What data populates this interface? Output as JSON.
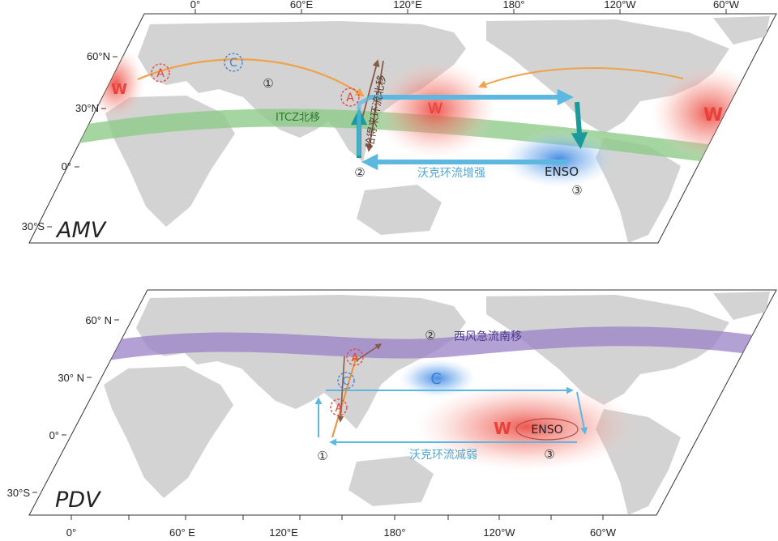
{
  "colors": {
    "warm": "#e8403a",
    "cold": "#3a7fd6",
    "jet": "#f0a24a",
    "walker": "#5cb8e0",
    "walker_dark": "#1a9a9a",
    "itcz": "#8ecb8a",
    "westerly": "#9a82c8",
    "hadley": "#8a5a48",
    "land": "#d3d3d3"
  },
  "top_panel": {
    "label": "AMV",
    "lon_ticks": [
      "0°",
      "60°E",
      "120°E",
      "180°",
      "120°W",
      "60°W"
    ],
    "lat_ticks": [
      "60°N",
      "30°N",
      "0°",
      "30°S"
    ],
    "warm_labels": [
      "W",
      "W",
      "W"
    ],
    "anticyclone_labels": [
      "A",
      "A"
    ],
    "cyclone_label": "C",
    "itcz_text": "ITCZ北移",
    "hadley_text": "哈得来环流北移",
    "walker_text": "沃克环流增强",
    "enso_text": "ENSO",
    "circle_nums": [
      "①",
      "②",
      "③"
    ]
  },
  "bottom_panel": {
    "label": "PDV",
    "lon_ticks": [
      "0°",
      "60° E",
      "120°E",
      "180°",
      "120°W",
      "60°W"
    ],
    "lat_ticks": [
      "60° N",
      "30° N",
      "0°",
      "30°S"
    ],
    "westerly_text": "西风急流南移",
    "warm_label": "W",
    "cold_label": "C",
    "anticyclone_labels": [
      "A",
      "A"
    ],
    "cyclone_label": "C",
    "walker_text": "沃克环流减弱",
    "enso_text": "ENSO",
    "circle_nums": [
      "①",
      "②",
      "③"
    ]
  }
}
